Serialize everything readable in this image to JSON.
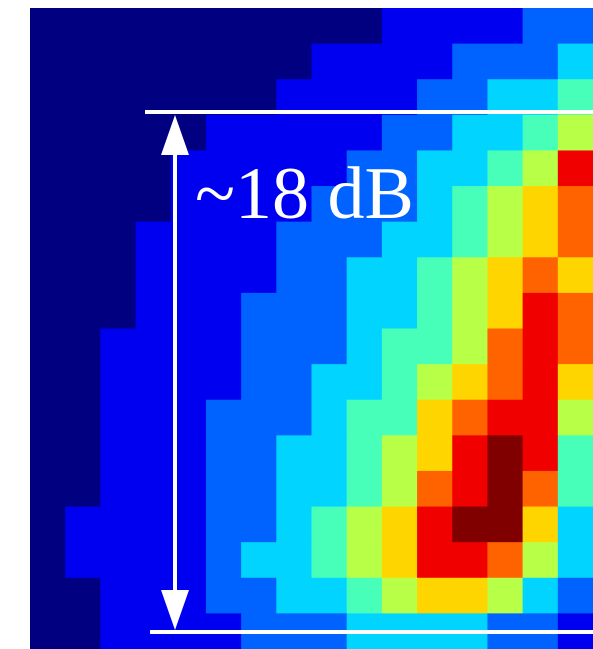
{
  "chart_data": {
    "type": "heatmap",
    "annotation": "~18 dB",
    "colormap": "jet",
    "zlim": [
      0,
      9
    ],
    "values": [
      [
        0,
        0,
        0,
        0,
        0,
        0,
        0,
        0,
        0,
        0,
        1,
        1,
        1,
        1,
        2,
        2
      ],
      [
        0,
        0,
        0,
        0,
        0,
        0,
        0,
        0,
        1,
        1,
        1,
        1,
        2,
        2,
        2,
        3
      ],
      [
        0,
        0,
        0,
        0,
        0,
        0,
        0,
        1,
        1,
        1,
        1,
        2,
        2,
        3,
        3,
        4
      ],
      [
        0,
        0,
        0,
        0,
        0,
        1,
        1,
        1,
        1,
        1,
        2,
        2,
        3,
        3,
        4,
        5
      ],
      [
        0,
        0,
        0,
        0,
        1,
        1,
        1,
        1,
        1,
        2,
        2,
        3,
        3,
        4,
        5,
        8
      ],
      [
        0,
        0,
        0,
        0,
        1,
        1,
        1,
        1,
        2,
        2,
        2,
        3,
        4,
        5,
        6,
        7
      ],
      [
        0,
        0,
        0,
        1,
        1,
        1,
        1,
        2,
        2,
        2,
        3,
        3,
        4,
        5,
        6,
        7
      ],
      [
        0,
        0,
        0,
        1,
        1,
        1,
        1,
        2,
        2,
        3,
        3,
        4,
        5,
        6,
        7,
        6
      ],
      [
        0,
        0,
        0,
        1,
        1,
        1,
        2,
        2,
        2,
        3,
        3,
        4,
        5,
        6,
        8,
        7
      ],
      [
        0,
        0,
        1,
        1,
        1,
        1,
        2,
        2,
        2,
        3,
        4,
        4,
        5,
        7,
        8,
        7
      ],
      [
        0,
        0,
        1,
        1,
        1,
        1,
        2,
        2,
        3,
        3,
        4,
        5,
        6,
        7,
        8,
        6
      ],
      [
        0,
        0,
        1,
        1,
        1,
        2,
        2,
        2,
        3,
        4,
        4,
        6,
        7,
        8,
        8,
        5
      ],
      [
        0,
        0,
        1,
        1,
        1,
        2,
        2,
        3,
        3,
        4,
        5,
        6,
        8,
        9,
        8,
        4
      ],
      [
        0,
        0,
        1,
        1,
        1,
        2,
        2,
        3,
        3,
        4,
        5,
        7,
        8,
        9,
        7,
        4
      ],
      [
        0,
        1,
        1,
        1,
        1,
        2,
        2,
        3,
        4,
        5,
        6,
        8,
        9,
        9,
        6,
        3
      ],
      [
        0,
        1,
        1,
        1,
        1,
        2,
        3,
        3,
        4,
        5,
        6,
        8,
        8,
        7,
        5,
        3
      ],
      [
        0,
        0,
        1,
        1,
        1,
        2,
        2,
        3,
        3,
        4,
        5,
        6,
        6,
        5,
        3,
        2
      ],
      [
        0,
        0,
        1,
        1,
        1,
        1,
        2,
        2,
        2,
        3,
        3,
        3,
        3,
        2,
        2,
        1
      ]
    ]
  }
}
